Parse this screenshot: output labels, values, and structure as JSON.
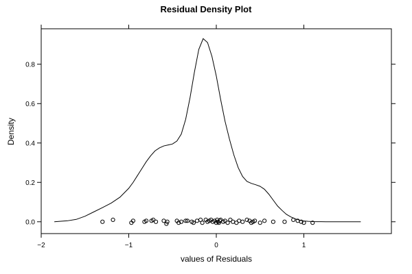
{
  "chart_data": {
    "type": "line",
    "title": "Residual Density Plot",
    "xlabel": "values of Residuals",
    "ylabel": "Density",
    "xlim": [
      -2.0,
      2.0
    ],
    "ylim": [
      -0.06,
      0.98
    ],
    "x_ticks": [
      -2,
      -1,
      0,
      1
    ],
    "x_tick_labels": [
      "−2",
      "−1",
      "0",
      "1"
    ],
    "y_ticks": [
      0.0,
      0.2,
      0.4,
      0.6,
      0.8
    ],
    "y_tick_labels": [
      "0.0",
      "0.2",
      "0.4",
      "0.6",
      "0.8"
    ],
    "grid": false,
    "legend": "none",
    "line_color": "#000000",
    "density_curve": {
      "x": [
        -1.85,
        -1.7,
        -1.6,
        -1.5,
        -1.4,
        -1.3,
        -1.2,
        -1.1,
        -1.0,
        -0.95,
        -0.9,
        -0.85,
        -0.8,
        -0.75,
        -0.7,
        -0.65,
        -0.6,
        -0.55,
        -0.5,
        -0.45,
        -0.4,
        -0.35,
        -0.3,
        -0.25,
        -0.2,
        -0.15,
        -0.1,
        -0.05,
        0.0,
        0.05,
        0.1,
        0.15,
        0.2,
        0.25,
        0.3,
        0.35,
        0.4,
        0.45,
        0.5,
        0.55,
        0.6,
        0.65,
        0.7,
        0.75,
        0.8,
        0.85,
        0.9,
        0.95,
        1.0,
        1.05,
        1.1,
        1.15,
        1.2,
        1.25,
        1.3,
        1.35,
        1.4,
        1.5,
        1.6,
        1.65
      ],
      "y": [
        0.0,
        0.005,
        0.012,
        0.028,
        0.05,
        0.072,
        0.095,
        0.125,
        0.17,
        0.2,
        0.235,
        0.27,
        0.305,
        0.335,
        0.36,
        0.375,
        0.385,
        0.39,
        0.395,
        0.41,
        0.445,
        0.52,
        0.63,
        0.76,
        0.875,
        0.93,
        0.91,
        0.84,
        0.74,
        0.62,
        0.51,
        0.42,
        0.34,
        0.275,
        0.23,
        0.205,
        0.195,
        0.188,
        0.18,
        0.165,
        0.14,
        0.11,
        0.08,
        0.058,
        0.038,
        0.025,
        0.015,
        0.008,
        0.004,
        0.002,
        0.001,
        0.0006,
        0.0003,
        0.0002,
        0.0001,
        0.0001,
        0.0,
        0.0,
        0.0,
        0.0
      ]
    },
    "residual_points": {
      "x": [
        -1.3,
        -1.18,
        -0.97,
        -0.95,
        -0.82,
        -0.8,
        -0.74,
        -0.72,
        -0.69,
        -0.6,
        -0.57,
        -0.56,
        -0.45,
        -0.43,
        -0.4,
        -0.35,
        -0.33,
        -0.28,
        -0.26,
        -0.22,
        -0.18,
        -0.16,
        -0.12,
        -0.1,
        -0.08,
        -0.06,
        -0.04,
        -0.02,
        0.0,
        0.01,
        0.02,
        0.03,
        0.04,
        0.05,
        0.08,
        0.1,
        0.13,
        0.16,
        0.19,
        0.23,
        0.26,
        0.3,
        0.35,
        0.38,
        0.4,
        0.42,
        0.44,
        0.5,
        0.55,
        0.65,
        0.78,
        0.88,
        0.93,
        0.97,
        1.0,
        1.1
      ],
      "y": [
        0.0,
        0.01,
        -0.005,
        0.005,
        0.0,
        0.005,
        0.005,
        0.01,
        0.0,
        0.005,
        -0.01,
        0.0,
        0.005,
        -0.005,
        0.0,
        0.005,
        0.005,
        0.0,
        -0.005,
        0.005,
        0.01,
        -0.005,
        0.01,
        0.0,
        0.005,
        0.01,
        0.0,
        0.005,
        -0.005,
        0.01,
        0.0,
        -0.005,
        0.005,
        0.01,
        0.0,
        0.005,
        -0.005,
        0.01,
        0.0,
        -0.005,
        0.005,
        0.0,
        0.01,
        0.005,
        -0.005,
        0.0,
        0.005,
        -0.005,
        0.005,
        0.0,
        0.0,
        0.01,
        0.005,
        0.0,
        -0.005,
        -0.005
      ]
    }
  }
}
